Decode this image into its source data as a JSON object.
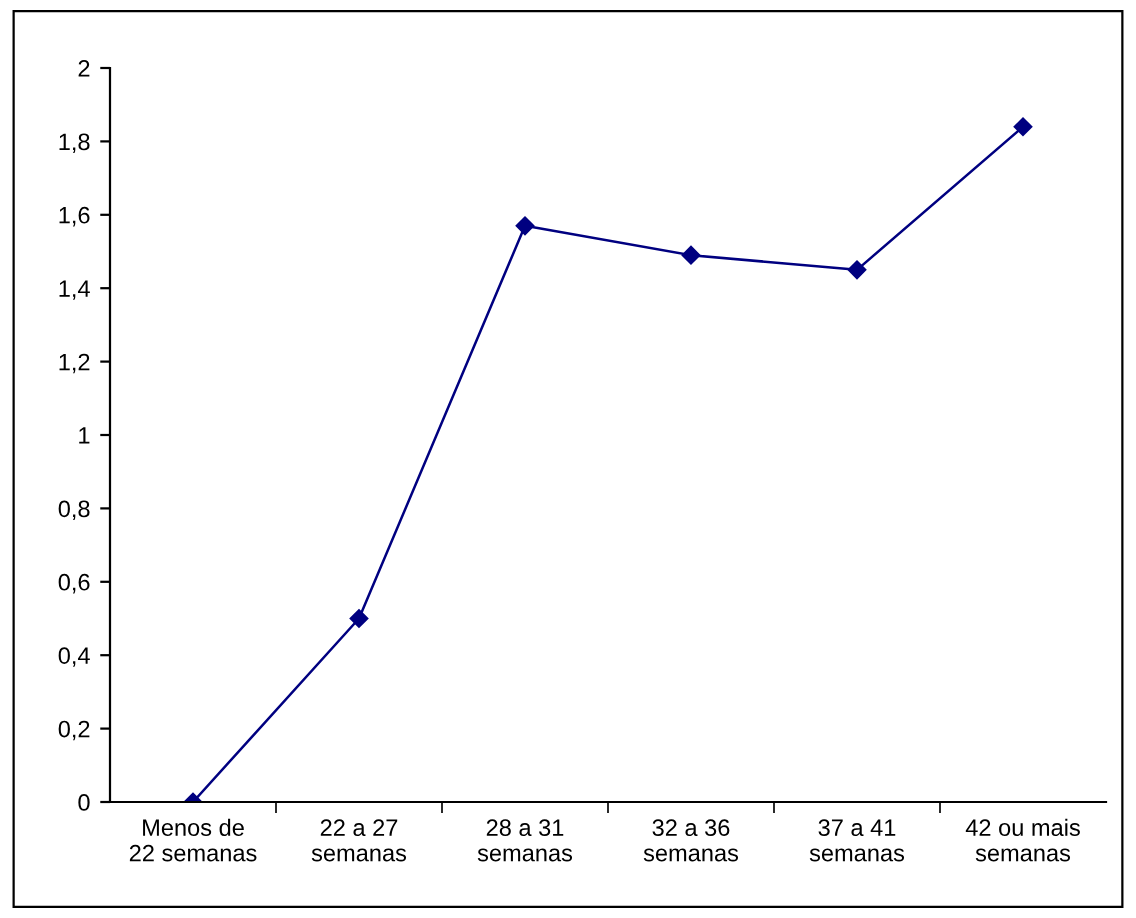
{
  "chart_data": {
    "type": "line",
    "categories": [
      "Menos de\n22 semanas",
      "22 a 27\nsemanas",
      "28 a 31\nsemanas",
      "32 a 36\nsemanas",
      "37 a 41\nsemanas",
      "42 ou mais\nsemanas"
    ],
    "series": [
      {
        "color": "#000080",
        "values": [
          0,
          0.5,
          1.57,
          1.49,
          1.45,
          1.84
        ]
      }
    ],
    "ylim": [
      0,
      2
    ],
    "yticks": [
      0,
      {
        "value": 0.2,
        "label": "0,2"
      },
      {
        "value": 0.4,
        "label": "0,4"
      },
      {
        "value": 0.6,
        "label": "0,6"
      },
      {
        "value": 0.8,
        "label": "0,8"
      },
      1,
      {
        "value": 1.2,
        "label": "1,2"
      },
      {
        "value": 1.4,
        "label": "1,4"
      },
      {
        "value": 1.6,
        "label": "1,6"
      },
      {
        "value": 1.8,
        "label": "1,8"
      },
      2
    ],
    "grid": false,
    "legend": false,
    "marker": "diamond",
    "line_style": "solid"
  }
}
